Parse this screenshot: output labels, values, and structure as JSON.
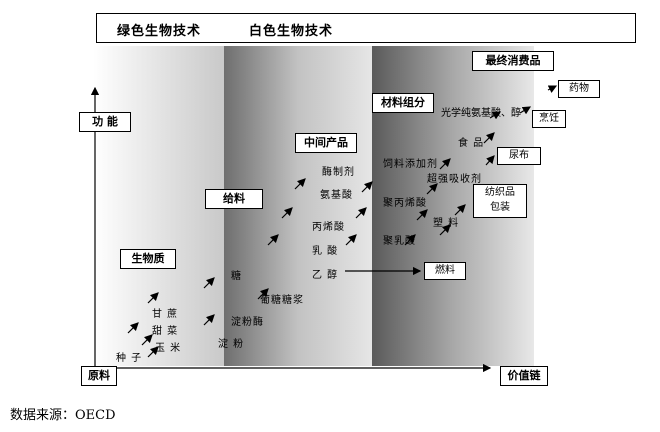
{
  "header": {
    "left": "绿色生物技术",
    "right": "白色生物技术"
  },
  "axes": {
    "y_label": "功 能",
    "x_origin": "原料",
    "x_label": "价值链"
  },
  "stages": {
    "biomass": "生物质",
    "feedstock": "给料",
    "intermediates": "中间产品",
    "materials": "材料组分",
    "consumer": "最终消费品"
  },
  "column1": [
    "甘 蔗",
    "甜 菜",
    "玉 米",
    "种 子"
  ],
  "column2": [
    "糖",
    "淀粉酶",
    "淀 粉"
  ],
  "column3": [
    "酶制剂",
    "氨基酸",
    "丙烯酸",
    "乳 酸",
    "乙 醇",
    "葡糖糖浆"
  ],
  "column4": [
    "饲料添加剂",
    "聚丙烯酸",
    "塑 料",
    "聚乳酸"
  ],
  "products": {
    "fine_chem": "光学纯氨基酸、醇",
    "food": "食 品",
    "absorbent": "超强吸收剂",
    "drugs": "药物",
    "cooking": "烹饪",
    "diaper": "尿布",
    "textile": "纺织品\n包装",
    "fuel": "燃料"
  },
  "source": "数据来源：OECD"
}
